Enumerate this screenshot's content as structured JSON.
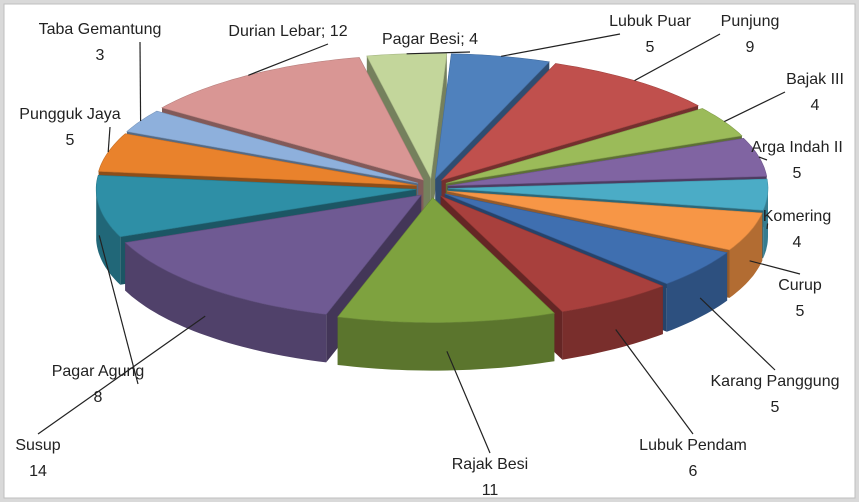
{
  "chart_data": {
    "type": "pie3d",
    "categories": [
      "Lubuk Puar",
      "Punjung",
      "Bajak III",
      "Arga Indah II",
      "Komering",
      "Curup",
      "Karang Panggung",
      "Lubuk Pendam",
      "Rajak Besi",
      "Susup",
      "Pagar Agung",
      "Pungguk Jaya",
      "Taba Gemantung",
      "Durian Lebar",
      "Pagar Besi"
    ],
    "values": [
      5,
      9,
      4,
      5,
      4,
      5,
      5,
      6,
      11,
      14,
      8,
      5,
      3,
      12,
      4
    ],
    "colors": [
      "#4f81bd",
      "#c0504d",
      "#9bbb59",
      "#8064a2",
      "#4bacc6",
      "#f79646",
      "#3f6fb0",
      "#a8403d",
      "#7ea23f",
      "#6f5a93",
      "#2e8fa6",
      "#e9822c",
      "#8eb0dc",
      "#d99694",
      "#c3d69b"
    ],
    "label_style": [
      "stacked",
      "stacked",
      "stacked",
      "stacked",
      "stacked",
      "stacked",
      "stacked",
      "stacked",
      "stacked",
      "stacked",
      "stacked",
      "stacked",
      "stacked",
      "inline",
      "inline"
    ],
    "label_separator": "; "
  }
}
